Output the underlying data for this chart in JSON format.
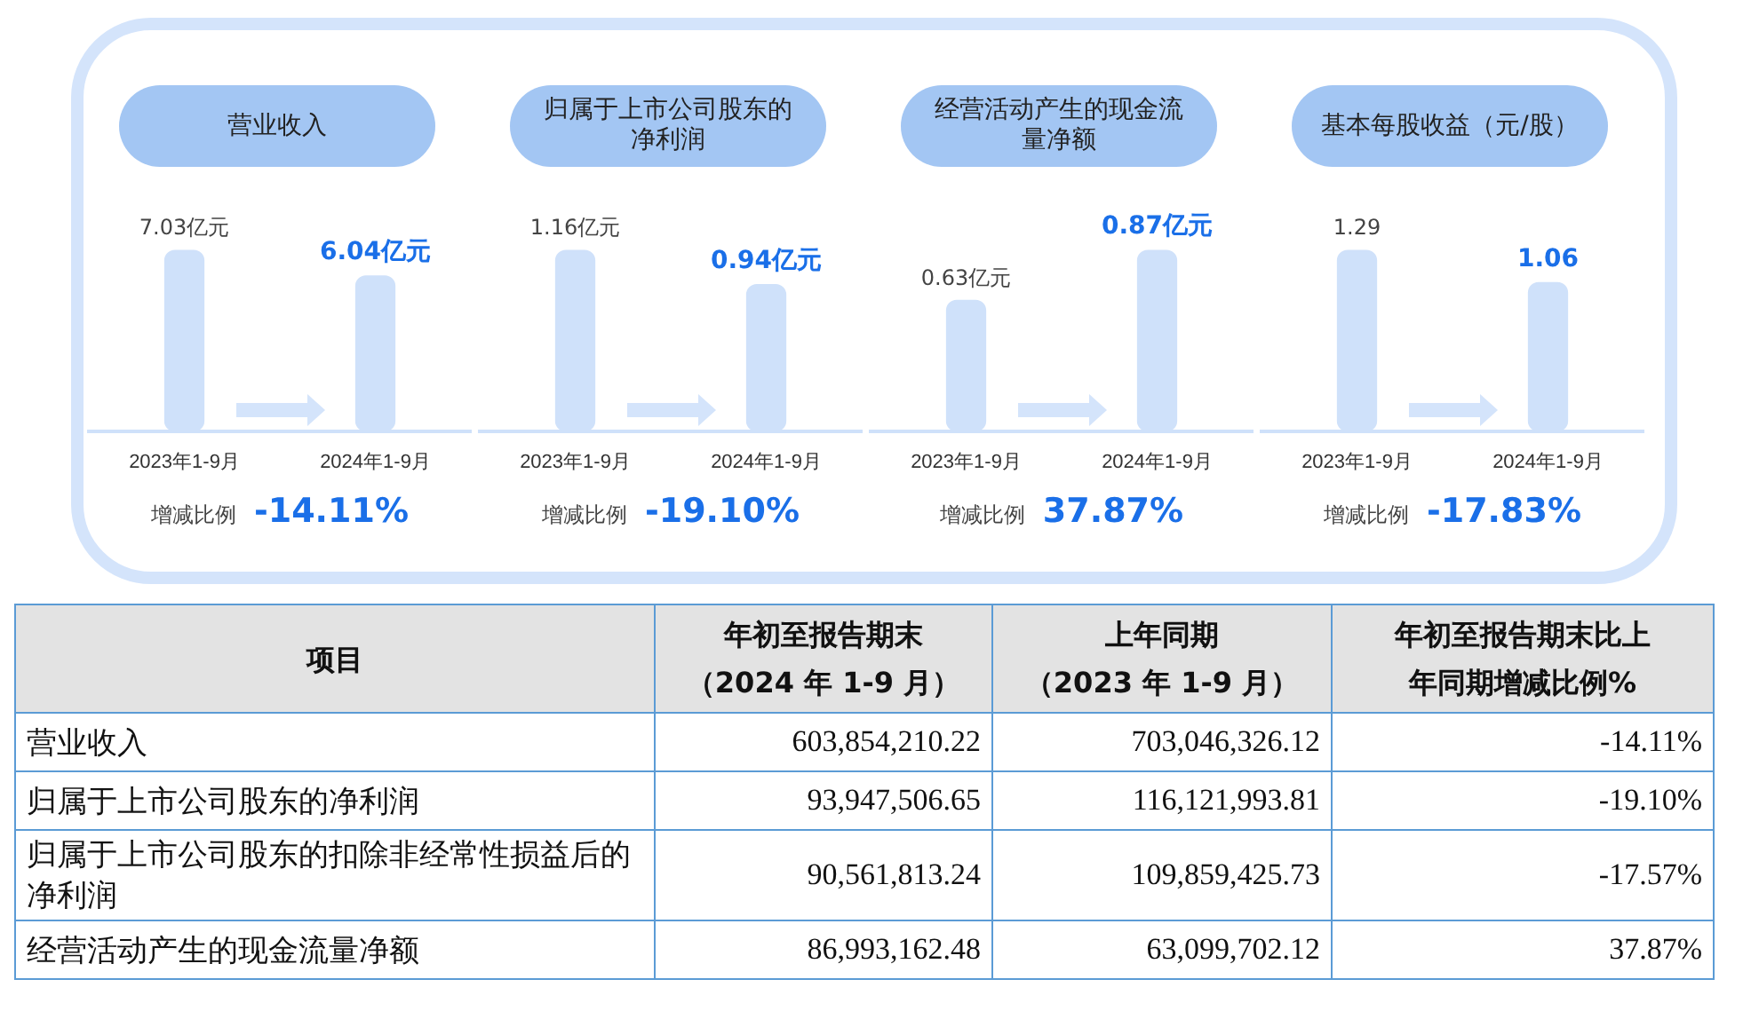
{
  "chart_data": [
    {
      "type": "bar",
      "title": "营业收入",
      "categories": [
        "2023年1-9月",
        "2024年1-9月"
      ],
      "values": [
        7.03,
        6.04
      ],
      "value_labels": [
        "7.03亿元",
        "6.04亿元"
      ],
      "colors": [
        "#cfe1fa",
        "#cfe1fa"
      ],
      "annotations": [
        "增减比例",
        "-14.11%"
      ]
    },
    {
      "type": "bar",
      "title": "归属于上市公司股东的净利润",
      "categories": [
        "2023年1-9月",
        "2024年1-9月"
      ],
      "values": [
        1.16,
        0.94
      ],
      "value_labels": [
        "1.16亿元",
        "0.94亿元"
      ],
      "colors": [
        "#cfe1fa",
        "#cfe1fa"
      ],
      "annotations": [
        "增减比例",
        "-19.10%"
      ]
    },
    {
      "type": "bar",
      "title": "经营活动产生的现金流量净额",
      "categories": [
        "2023年1-9月",
        "2024年1-9月"
      ],
      "values": [
        0.63,
        0.87
      ],
      "value_labels": [
        "0.63亿元",
        "0.87亿元"
      ],
      "colors": [
        "#cfe1fa",
        "#cfe1fa"
      ],
      "annotations": [
        "增减比例",
        "37.87%"
      ]
    },
    {
      "type": "bar",
      "title": "基本每股收益（元/股）",
      "categories": [
        "2023年1-9月",
        "2024年1-9月"
      ],
      "values": [
        1.29,
        1.06
      ],
      "data_labels": true,
      "colors": [
        "#cfe1fa",
        "#cfe1fa"
      ],
      "annotations": [
        "增减比例",
        "-17.83%"
      ]
    },
    {
      "type": "other",
      "annotations": [
        "项目",
        "年初至报告期末（2024 年 1-9 月）",
        "上年同期（2023 年 1-9 月）",
        "年初至报告期末比上年同期增减比例%",
        "营业收入",
        "603,854,210.22",
        "703,046,326.12",
        "-14.11%",
        "归属于上市公司股东的净利润",
        "93,947,506.65",
        "116,121,993.81",
        "-19.10%",
        "归属于上市公司股东的扣除非经常性损益后的净利润",
        "90,561,813.24",
        "109,859,425.73",
        "-17.57%",
        "经营活动产生的现金流量净额",
        "86,993,162.48",
        "63,099,702.12",
        "37.87%"
      ]
    }
  ]
}
